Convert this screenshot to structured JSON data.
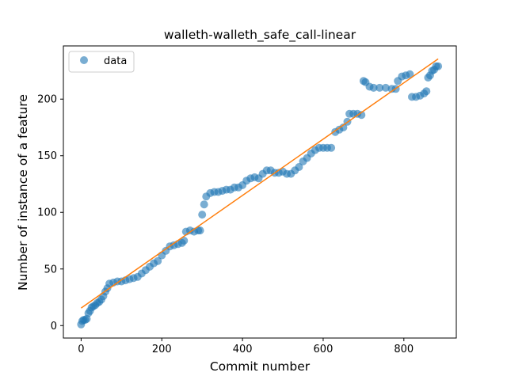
{
  "chart_data": {
    "type": "scatter",
    "title": "walleth-walleth_safe_call-linear",
    "xlabel": "Commit number",
    "ylabel": "Number of instance of a feature",
    "xlim": [
      -44,
      930
    ],
    "ylim": [
      -11,
      247
    ],
    "xticks": [
      0,
      200,
      400,
      600,
      800
    ],
    "yticks": [
      0,
      50,
      100,
      150,
      200
    ],
    "grid": false,
    "legend": {
      "position": "top-left",
      "entries": [
        "data"
      ]
    },
    "colors": {
      "data": "#1f77b4",
      "fit": "#ff7f0e"
    },
    "series": [
      {
        "name": "data",
        "kind": "scatter",
        "points": [
          [
            0,
            1
          ],
          [
            3,
            4
          ],
          [
            6,
            5
          ],
          [
            10,
            5
          ],
          [
            14,
            6
          ],
          [
            18,
            11
          ],
          [
            22,
            13
          ],
          [
            26,
            16
          ],
          [
            30,
            17
          ],
          [
            35,
            18
          ],
          [
            40,
            20
          ],
          [
            45,
            21
          ],
          [
            50,
            23
          ],
          [
            55,
            26
          ],
          [
            60,
            30
          ],
          [
            65,
            33
          ],
          [
            70,
            37
          ],
          [
            80,
            38
          ],
          [
            90,
            39
          ],
          [
            100,
            39
          ],
          [
            110,
            40
          ],
          [
            120,
            41
          ],
          [
            130,
            42
          ],
          [
            140,
            43
          ],
          [
            150,
            46
          ],
          [
            160,
            49
          ],
          [
            170,
            52
          ],
          [
            180,
            55
          ],
          [
            190,
            57
          ],
          [
            200,
            62
          ],
          [
            210,
            66
          ],
          [
            220,
            70
          ],
          [
            230,
            71
          ],
          [
            240,
            72
          ],
          [
            250,
            73
          ],
          [
            255,
            75
          ],
          [
            260,
            83
          ],
          [
            270,
            84
          ],
          [
            280,
            83
          ],
          [
            290,
            84
          ],
          [
            295,
            84
          ],
          [
            300,
            98
          ],
          [
            305,
            107
          ],
          [
            310,
            114
          ],
          [
            320,
            117
          ],
          [
            330,
            118
          ],
          [
            340,
            118
          ],
          [
            350,
            119
          ],
          [
            360,
            120
          ],
          [
            370,
            120
          ],
          [
            380,
            122
          ],
          [
            390,
            122
          ],
          [
            400,
            124
          ],
          [
            410,
            128
          ],
          [
            420,
            130
          ],
          [
            430,
            131
          ],
          [
            440,
            130
          ],
          [
            450,
            134
          ],
          [
            460,
            137
          ],
          [
            470,
            137
          ],
          [
            480,
            135
          ],
          [
            490,
            135
          ],
          [
            500,
            136
          ],
          [
            510,
            134
          ],
          [
            520,
            134
          ],
          [
            530,
            137
          ],
          [
            540,
            140
          ],
          [
            550,
            145
          ],
          [
            560,
            148
          ],
          [
            570,
            152
          ],
          [
            580,
            155
          ],
          [
            590,
            157
          ],
          [
            600,
            157
          ],
          [
            610,
            157
          ],
          [
            620,
            157
          ],
          [
            630,
            171
          ],
          [
            640,
            173
          ],
          [
            650,
            175
          ],
          [
            660,
            180
          ],
          [
            665,
            187
          ],
          [
            675,
            187
          ],
          [
            685,
            187
          ],
          [
            695,
            186
          ],
          [
            700,
            216
          ],
          [
            705,
            215
          ],
          [
            715,
            211
          ],
          [
            725,
            210
          ],
          [
            740,
            210
          ],
          [
            755,
            210
          ],
          [
            770,
            209
          ],
          [
            780,
            209
          ],
          [
            785,
            216
          ],
          [
            795,
            220
          ],
          [
            805,
            221
          ],
          [
            815,
            222
          ],
          [
            820,
            202
          ],
          [
            830,
            202
          ],
          [
            840,
            203
          ],
          [
            850,
            205
          ],
          [
            856,
            207
          ],
          [
            860,
            219
          ],
          [
            865,
            221
          ],
          [
            870,
            225
          ],
          [
            875,
            226
          ],
          [
            880,
            229
          ],
          [
            885,
            229
          ]
        ]
      },
      {
        "name": "fit",
        "kind": "line",
        "points": [
          [
            0,
            15.5
          ],
          [
            885,
            235.5
          ]
        ]
      }
    ]
  }
}
